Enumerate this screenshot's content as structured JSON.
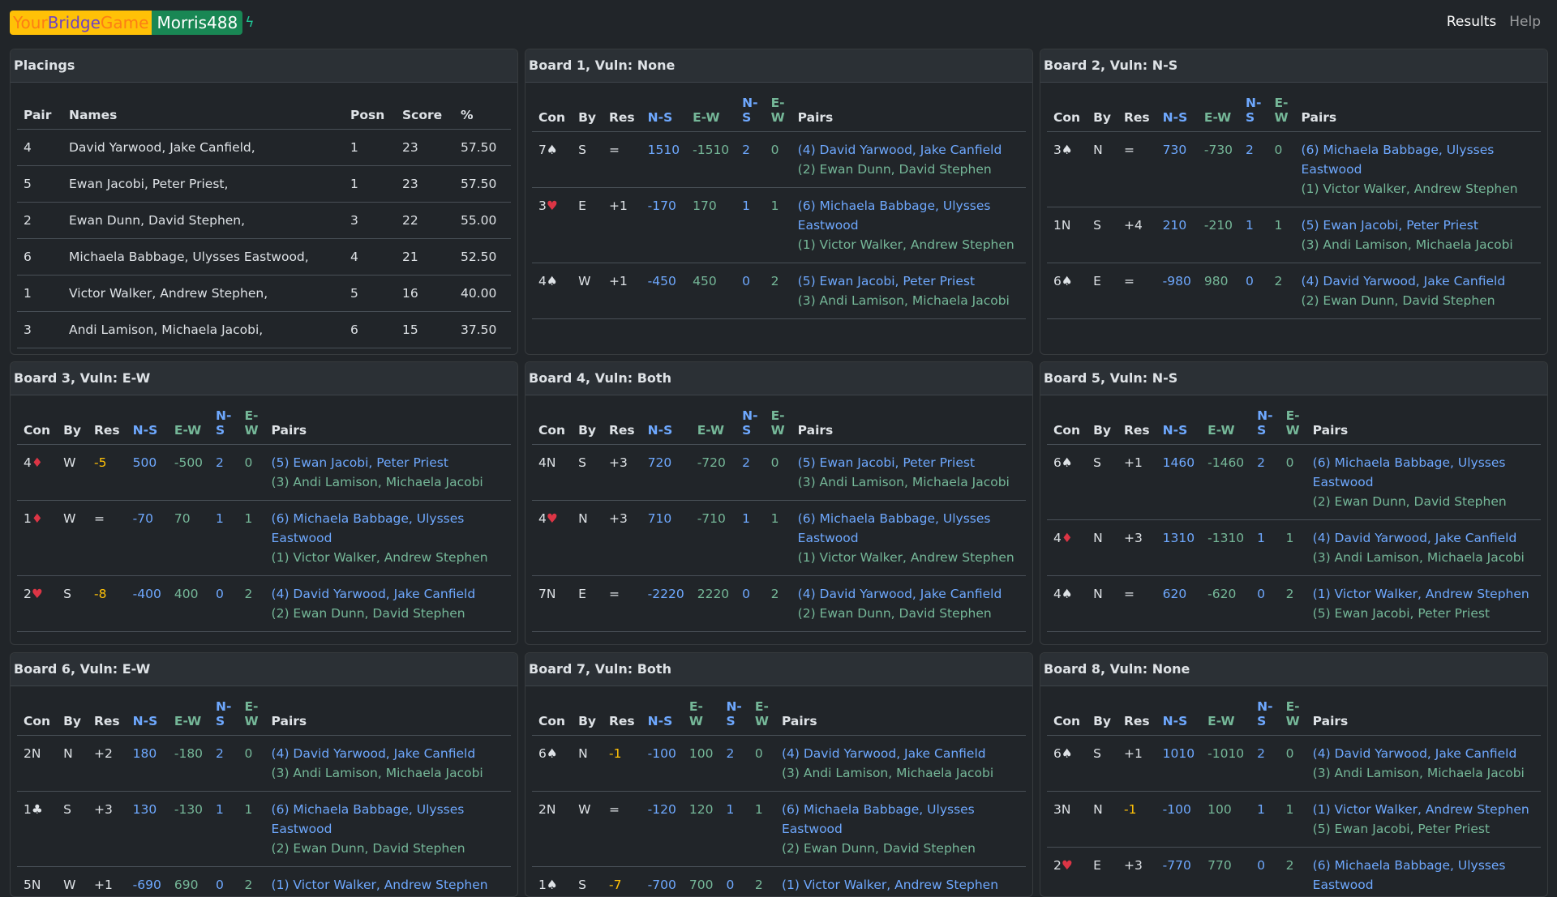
{
  "brand": {
    "part1": "Your",
    "part2": "Bridge",
    "part3": "Game",
    "user": "Morris488",
    "bolt_icon": "bolt-icon"
  },
  "nav": {
    "results": "Results",
    "help": "Help"
  },
  "placings": {
    "title": "Placings",
    "headers": [
      "Pair",
      "Names",
      "Posn",
      "Score",
      "%"
    ],
    "rows": [
      [
        "4",
        "David Yarwood, Jake Canfield,",
        "1",
        "23",
        "57.50"
      ],
      [
        "5",
        "Ewan Jacobi, Peter Priest,",
        "1",
        "23",
        "57.50"
      ],
      [
        "2",
        "Ewan Dunn, David Stephen,",
        "3",
        "22",
        "55.00"
      ],
      [
        "6",
        "Michaela Babbage, Ulysses Eastwood,",
        "4",
        "21",
        "52.50"
      ],
      [
        "1",
        "Victor Walker, Andrew Stephen,",
        "5",
        "16",
        "40.00"
      ],
      [
        "3",
        "Andi Lamison, Michaela Jacobi,",
        "6",
        "15",
        "37.50"
      ]
    ]
  },
  "board_headers": [
    "Con",
    "By",
    "Res",
    "N-S",
    "E-W",
    "N-S",
    "E-W",
    "Pairs"
  ],
  "boards": [
    {
      "title": "Board 1, Vuln: None",
      "rows": [
        {
          "con": "7",
          "suit": "♠",
          "by": "S",
          "res": "=",
          "ns": "1510",
          "ew": "-1510",
          "mpns": "2",
          "mpew": "0",
          "pns": "(4) David Yarwood, Jake Canfield",
          "pew": "(2) Ewan Dunn, David Stephen"
        },
        {
          "con": "3",
          "suit": "♥",
          "by": "E",
          "res": "+1",
          "ns": "-170",
          "ew": "170",
          "mpns": "1",
          "mpew": "1",
          "pns": "(6) Michaela Babbage, Ulysses Eastwood",
          "pew": "(1) Victor Walker, Andrew Stephen"
        },
        {
          "con": "4",
          "suit": "♠",
          "by": "W",
          "res": "+1",
          "ns": "-450",
          "ew": "450",
          "mpns": "0",
          "mpew": "2",
          "pns": "(5) Ewan Jacobi, Peter Priest",
          "pew": "(3) Andi Lamison, Michaela Jacobi"
        }
      ]
    },
    {
      "title": "Board 2, Vuln: N-S",
      "rows": [
        {
          "con": "3",
          "suit": "♠",
          "by": "N",
          "res": "=",
          "ns": "730",
          "ew": "-730",
          "mpns": "2",
          "mpew": "0",
          "pns": "(6) Michaela Babbage, Ulysses Eastwood",
          "pew": "(1) Victor Walker, Andrew Stephen"
        },
        {
          "con": "1N",
          "suit": "",
          "by": "S",
          "res": "+4",
          "ns": "210",
          "ew": "-210",
          "mpns": "1",
          "mpew": "1",
          "pns": "(5) Ewan Jacobi, Peter Priest",
          "pew": "(3) Andi Lamison, Michaela Jacobi"
        },
        {
          "con": "6",
          "suit": "♠",
          "by": "E",
          "res": "=",
          "ns": "-980",
          "ew": "980",
          "mpns": "0",
          "mpew": "2",
          "pns": "(4) David Yarwood, Jake Canfield",
          "pew": "(2) Ewan Dunn, David Stephen"
        }
      ]
    },
    {
      "title": "Board 3, Vuln: E-W",
      "rows": [
        {
          "con": "4",
          "suit": "♦",
          "by": "W",
          "res": "-5",
          "ns": "500",
          "ew": "-500",
          "mpns": "2",
          "mpew": "0",
          "pns": "(5) Ewan Jacobi, Peter Priest",
          "pew": "(3) Andi Lamison, Michaela Jacobi"
        },
        {
          "con": "1",
          "suit": "♦",
          "by": "W",
          "res": "=",
          "ns": "-70",
          "ew": "70",
          "mpns": "1",
          "mpew": "1",
          "pns": "(6) Michaela Babbage, Ulysses Eastwood",
          "pew": "(1) Victor Walker, Andrew Stephen"
        },
        {
          "con": "2",
          "suit": "♥",
          "by": "S",
          "res": "-8",
          "ns": "-400",
          "ew": "400",
          "mpns": "0",
          "mpew": "2",
          "pns": "(4) David Yarwood, Jake Canfield",
          "pew": "(2) Ewan Dunn, David Stephen"
        }
      ]
    },
    {
      "title": "Board 4, Vuln: Both",
      "rows": [
        {
          "con": "4N",
          "suit": "",
          "by": "S",
          "res": "+3",
          "ns": "720",
          "ew": "-720",
          "mpns": "2",
          "mpew": "0",
          "pns": "(5) Ewan Jacobi, Peter Priest",
          "pew": "(3) Andi Lamison, Michaela Jacobi"
        },
        {
          "con": "4",
          "suit": "♥",
          "by": "N",
          "res": "+3",
          "ns": "710",
          "ew": "-710",
          "mpns": "1",
          "mpew": "1",
          "pns": "(6) Michaela Babbage, Ulysses Eastwood",
          "pew": "(1) Victor Walker, Andrew Stephen"
        },
        {
          "con": "7N",
          "suit": "",
          "by": "E",
          "res": "=",
          "ns": "-2220",
          "ew": "2220",
          "mpns": "0",
          "mpew": "2",
          "pns": "(4) David Yarwood, Jake Canfield",
          "pew": "(2) Ewan Dunn, David Stephen"
        }
      ]
    },
    {
      "title": "Board 5, Vuln: N-S",
      "rows": [
        {
          "con": "6",
          "suit": "♠",
          "by": "S",
          "res": "+1",
          "ns": "1460",
          "ew": "-1460",
          "mpns": "2",
          "mpew": "0",
          "pns": "(6) Michaela Babbage, Ulysses Eastwood",
          "pew": "(2) Ewan Dunn, David Stephen"
        },
        {
          "con": "4",
          "suit": "♦",
          "by": "N",
          "res": "+3",
          "ns": "1310",
          "ew": "-1310",
          "mpns": "1",
          "mpew": "1",
          "pns": "(4) David Yarwood, Jake Canfield",
          "pew": "(3) Andi Lamison, Michaela Jacobi"
        },
        {
          "con": "4",
          "suit": "♠",
          "by": "N",
          "res": "=",
          "ns": "620",
          "ew": "-620",
          "mpns": "0",
          "mpew": "2",
          "pns": "(1) Victor Walker, Andrew Stephen",
          "pew": "(5) Ewan Jacobi, Peter Priest"
        }
      ]
    },
    {
      "title": "Board 6, Vuln: E-W",
      "rows": [
        {
          "con": "2N",
          "suit": "",
          "by": "N",
          "res": "+2",
          "ns": "180",
          "ew": "-180",
          "mpns": "2",
          "mpew": "0",
          "pns": "(4) David Yarwood, Jake Canfield",
          "pew": "(3) Andi Lamison, Michaela Jacobi"
        },
        {
          "con": "1",
          "suit": "♣",
          "by": "S",
          "res": "+3",
          "ns": "130",
          "ew": "-130",
          "mpns": "1",
          "mpew": "1",
          "pns": "(6) Michaela Babbage, Ulysses Eastwood",
          "pew": "(2) Ewan Dunn, David Stephen"
        },
        {
          "con": "5N",
          "suit": "",
          "by": "W",
          "res": "+1",
          "ns": "-690",
          "ew": "690",
          "mpns": "0",
          "mpew": "2",
          "pns": "(1) Victor Walker, Andrew Stephen",
          "pew": ""
        }
      ]
    },
    {
      "title": "Board 7, Vuln: Both",
      "rows": [
        {
          "con": "6",
          "suit": "♠",
          "by": "N",
          "res": "-1",
          "ns": "-100",
          "ew": "100",
          "mpns": "2",
          "mpew": "0",
          "pns": "(4) David Yarwood, Jake Canfield",
          "pew": "(3) Andi Lamison, Michaela Jacobi"
        },
        {
          "con": "2N",
          "suit": "",
          "by": "W",
          "res": "=",
          "ns": "-120",
          "ew": "120",
          "mpns": "1",
          "mpew": "1",
          "pns": "(6) Michaela Babbage, Ulysses Eastwood",
          "pew": "(2) Ewan Dunn, David Stephen"
        },
        {
          "con": "1",
          "suit": "♠",
          "by": "S",
          "res": "-7",
          "ns": "-700",
          "ew": "700",
          "mpns": "0",
          "mpew": "2",
          "pns": "(1) Victor Walker, Andrew Stephen",
          "pew": ""
        }
      ]
    },
    {
      "title": "Board 8, Vuln: None",
      "rows": [
        {
          "con": "6",
          "suit": "♠",
          "by": "S",
          "res": "+1",
          "ns": "1010",
          "ew": "-1010",
          "mpns": "2",
          "mpew": "0",
          "pns": "(4) David Yarwood, Jake Canfield",
          "pew": "(3) Andi Lamison, Michaela Jacobi"
        },
        {
          "con": "3N",
          "suit": "",
          "by": "N",
          "res": "-1",
          "ns": "-100",
          "ew": "100",
          "mpns": "1",
          "mpew": "1",
          "pns": "(1) Victor Walker, Andrew Stephen",
          "pew": "(5) Ewan Jacobi, Peter Priest"
        },
        {
          "con": "2",
          "suit": "♥",
          "by": "E",
          "res": "+3",
          "ns": "-770",
          "ew": "770",
          "mpns": "0",
          "mpew": "2",
          "pns": "(6) Michaela Babbage, Ulysses Eastwood",
          "pew": ""
        }
      ]
    }
  ]
}
